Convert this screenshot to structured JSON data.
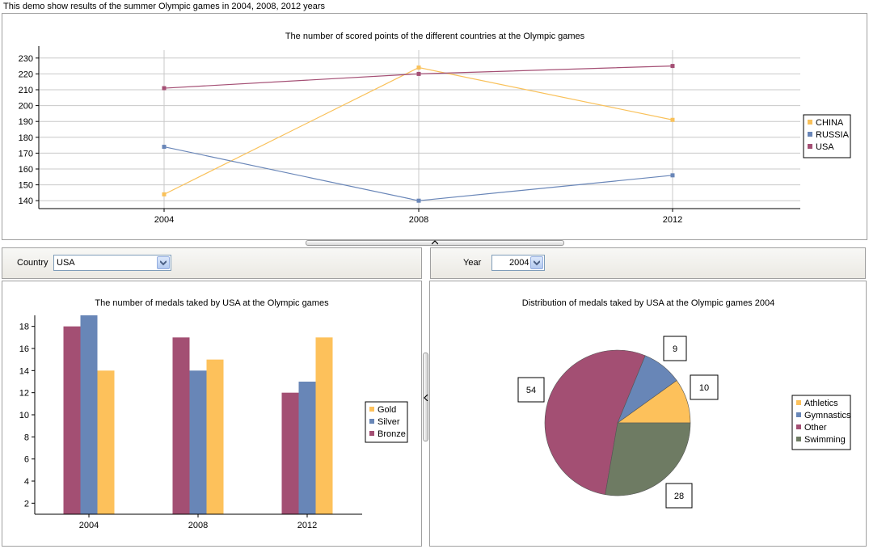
{
  "window": {
    "caption": "This demo show results of the summer Olympic games in 2004, 2008, 2012 years"
  },
  "filters": {
    "country_label": "Country",
    "country_value": "USA",
    "year_label": "Year",
    "year_value": "2004"
  },
  "colors": {
    "china": "#F9C15A",
    "russia": "#6986B8",
    "usa": "#A44F74",
    "gold": "#FDC15B",
    "silver": "#6886B7",
    "bronze": "#A34F73",
    "athletics": "#FDC15B",
    "gymnastics": "#6886B7",
    "other": "#A34F73",
    "swimming": "#6E7B63"
  },
  "chart_data": [
    {
      "type": "line",
      "title": "The number of scored points of the different countries at the Olympic games",
      "categories": [
        "2004",
        "2008",
        "2012"
      ],
      "yticks": [
        "140",
        "150",
        "160",
        "170",
        "180",
        "190",
        "200",
        "210",
        "220",
        "230"
      ],
      "ylim": [
        135,
        235
      ],
      "grid": true,
      "legend_position": "right",
      "series": [
        {
          "name": "CHINA",
          "values": [
            144,
            224,
            191
          ],
          "color": "#F9C15A"
        },
        {
          "name": "RUSSIA",
          "values": [
            174,
            140,
            156
          ],
          "color": "#6986B8"
        },
        {
          "name": "USA",
          "values": [
            211,
            220,
            225
          ],
          "color": "#A44F74"
        }
      ]
    },
    {
      "type": "bar",
      "title": "The number of medals taked by USA at the Olympic games",
      "categories": [
        "2004",
        "2008",
        "2012"
      ],
      "yticks": [
        "2",
        "4",
        "6",
        "8",
        "10",
        "12",
        "14",
        "16",
        "18"
      ],
      "ylim": [
        1,
        19
      ],
      "grid": false,
      "legend_position": "right",
      "series": [
        {
          "name": "Gold",
          "values": [
            14,
            15,
            17
          ],
          "color": "#FDC15B"
        },
        {
          "name": "Silver",
          "values": [
            19,
            14,
            13
          ],
          "color": "#6886B7"
        },
        {
          "name": "Bronze",
          "values": [
            18,
            17,
            12
          ],
          "color": "#A34F73"
        }
      ]
    },
    {
      "type": "pie",
      "title": "Distribution of medals taked by USA at the Olympic games 2004",
      "legend_position": "right",
      "slices": [
        {
          "name": "Athletics",
          "value": 10,
          "label": "10",
          "color": "#FDC15B"
        },
        {
          "name": "Gymnastics",
          "value": 9,
          "label": "9",
          "color": "#6886B7"
        },
        {
          "name": "Other",
          "value": 54,
          "label": "54",
          "color": "#A34F73"
        },
        {
          "name": "Swimming",
          "value": 28,
          "label": "28",
          "color": "#6E7B63"
        }
      ]
    }
  ]
}
